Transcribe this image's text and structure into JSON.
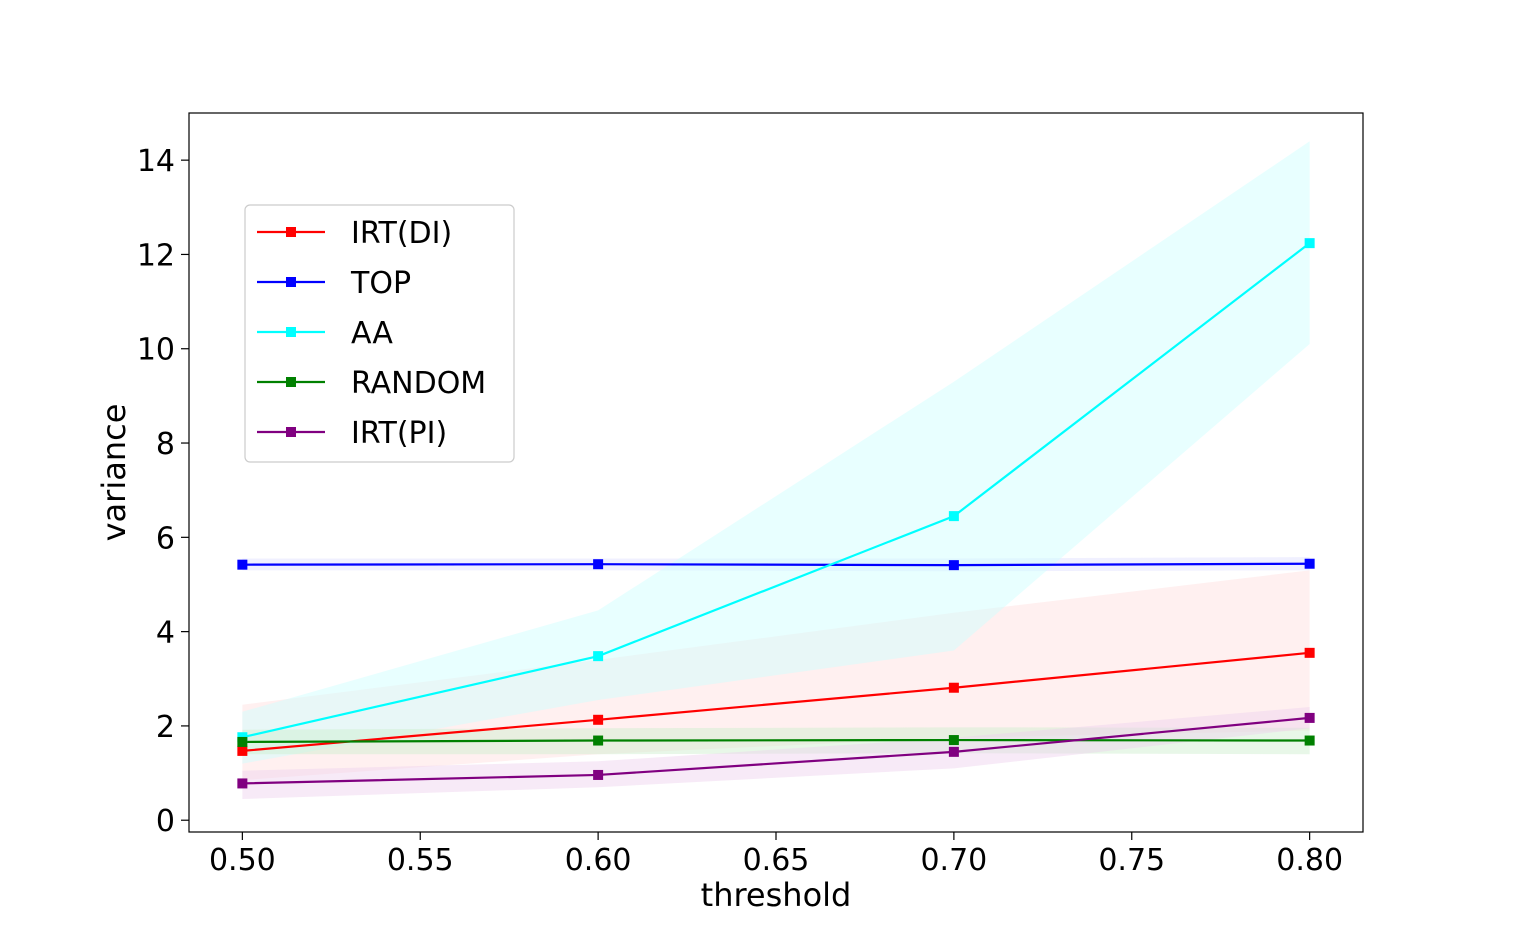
{
  "chart_data": {
    "type": "line",
    "xlabel": "threshold",
    "ylabel": "variance",
    "x": [
      0.5,
      0.6,
      0.7,
      0.8
    ],
    "xlim": [
      0.485,
      0.815
    ],
    "ylim": [
      -0.25,
      15.0
    ],
    "xticks": [
      0.5,
      0.55,
      0.6,
      0.65,
      0.7,
      0.75,
      0.8
    ],
    "xtick_labels": [
      "0.50",
      "0.55",
      "0.60",
      "0.65",
      "0.70",
      "0.75",
      "0.80"
    ],
    "yticks": [
      0,
      2,
      4,
      6,
      8,
      10,
      12,
      14
    ],
    "ytick_labels": [
      "0",
      "2",
      "4",
      "6",
      "8",
      "10",
      "12",
      "14"
    ],
    "grid": false,
    "legend_position": "upper-left",
    "series": [
      {
        "name": "IRT(DI)",
        "color": "#ff0000",
        "fill": "#ffdddd",
        "marker": "square",
        "values": [
          1.47,
          2.13,
          2.81,
          3.55
        ],
        "lower": [
          0.85,
          1.4,
          1.75,
          1.9
        ],
        "upper": [
          2.45,
          3.4,
          4.4,
          5.3
        ]
      },
      {
        "name": "TOP",
        "color": "#0000ff",
        "fill": "#ddddff",
        "marker": "square",
        "values": [
          5.42,
          5.43,
          5.41,
          5.44
        ],
        "lower": [
          5.3,
          5.3,
          5.28,
          5.3
        ],
        "upper": [
          5.55,
          5.55,
          5.55,
          5.58
        ]
      },
      {
        "name": "AA",
        "color": "#00ffff",
        "fill": "#ccffff",
        "marker": "square",
        "values": [
          1.76,
          3.48,
          6.45,
          12.24
        ],
        "lower": [
          1.2,
          2.55,
          3.6,
          10.1
        ],
        "upper": [
          2.3,
          4.45,
          9.3,
          14.4
        ]
      },
      {
        "name": "RANDOM",
        "color": "#008000",
        "fill": "#cceecc",
        "marker": "square",
        "values": [
          1.66,
          1.69,
          1.7,
          1.69
        ],
        "lower": [
          1.4,
          1.4,
          1.42,
          1.4
        ],
        "upper": [
          1.92,
          1.95,
          1.97,
          1.96
        ]
      },
      {
        "name": "IRT(PI)",
        "color": "#800080",
        "fill": "#eed0ee",
        "marker": "square",
        "values": [
          0.78,
          0.96,
          1.45,
          2.17
        ],
        "lower": [
          0.45,
          0.7,
          1.1,
          1.95
        ],
        "upper": [
          1.05,
          1.25,
          1.75,
          2.4
        ]
      }
    ]
  }
}
